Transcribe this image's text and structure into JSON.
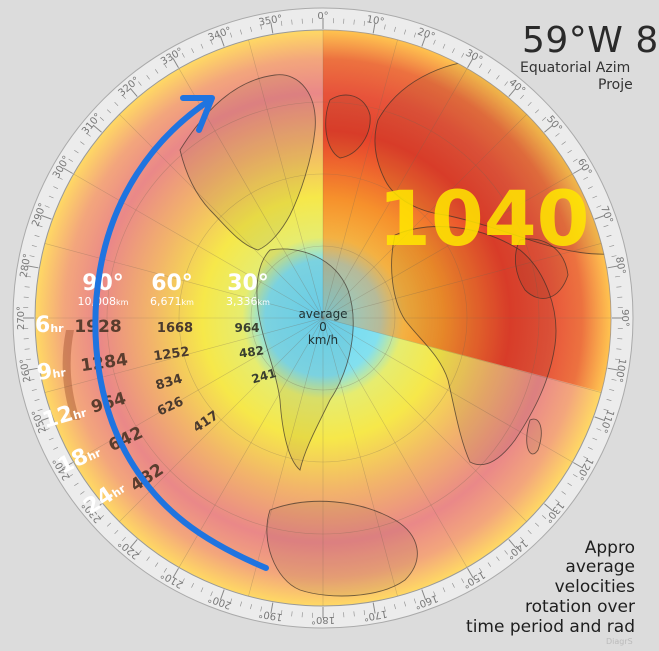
{
  "title": "59°W 8",
  "subtitle_line1": "Equatorial Azim",
  "subtitle_line2": "Proje",
  "center_label": {
    "line1": "average",
    "line2": "0",
    "line3": "km/h"
  },
  "big_overlay_number": "1040",
  "ring_headers": [
    {
      "deg": "90°",
      "km": "10,008",
      "unit": "km"
    },
    {
      "deg": "60°",
      "km": "6,671",
      "unit": "km"
    },
    {
      "deg": "30°",
      "km": "3,336",
      "unit": "km"
    }
  ],
  "time_periods": [
    {
      "hr": "6",
      "unit": "hr",
      "v90": "1928",
      "v60": "1668",
      "v30": "964"
    },
    {
      "hr": "9",
      "unit": "hr",
      "v90": "1284",
      "v60": "1252",
      "v30": "482"
    },
    {
      "hr": "12",
      "unit": "hr",
      "v90": "964",
      "v60": "834",
      "v30": "241"
    },
    {
      "hr": "18",
      "unit": "hr",
      "v90": "642",
      "v60": "626",
      "v30": ""
    },
    {
      "hr": "24",
      "unit": "hr",
      "v90": "482",
      "v60": "417",
      "v30": ""
    }
  ],
  "bearing_labels": [
    "0°",
    "10°",
    "20°",
    "30°",
    "40°",
    "50°",
    "60°",
    "70°",
    "80°",
    "90°",
    "100°",
    "110°",
    "120°",
    "130°",
    "140°",
    "150°",
    "160°",
    "170°",
    "180°",
    "190°",
    "200°",
    "210°",
    "220°",
    "230°",
    "240°",
    "250°",
    "260°",
    "270°",
    "280°",
    "290°",
    "300°",
    "310°",
    "320°",
    "330°",
    "340°",
    "350°"
  ],
  "caption_lines": [
    "Appro",
    "average",
    "velocities",
    "rotation over",
    "time period and rad"
  ],
  "watermark": "DiagrS",
  "colors": {
    "center": "#6fd8f5",
    "inner": "#f3ea3c",
    "mid": "#f0b56a",
    "outer": "#ea8a8a",
    "edge": "#ffd964",
    "highlight": "#e63a1a",
    "arrow": "#1f74e0",
    "ring": "#ececec"
  }
}
